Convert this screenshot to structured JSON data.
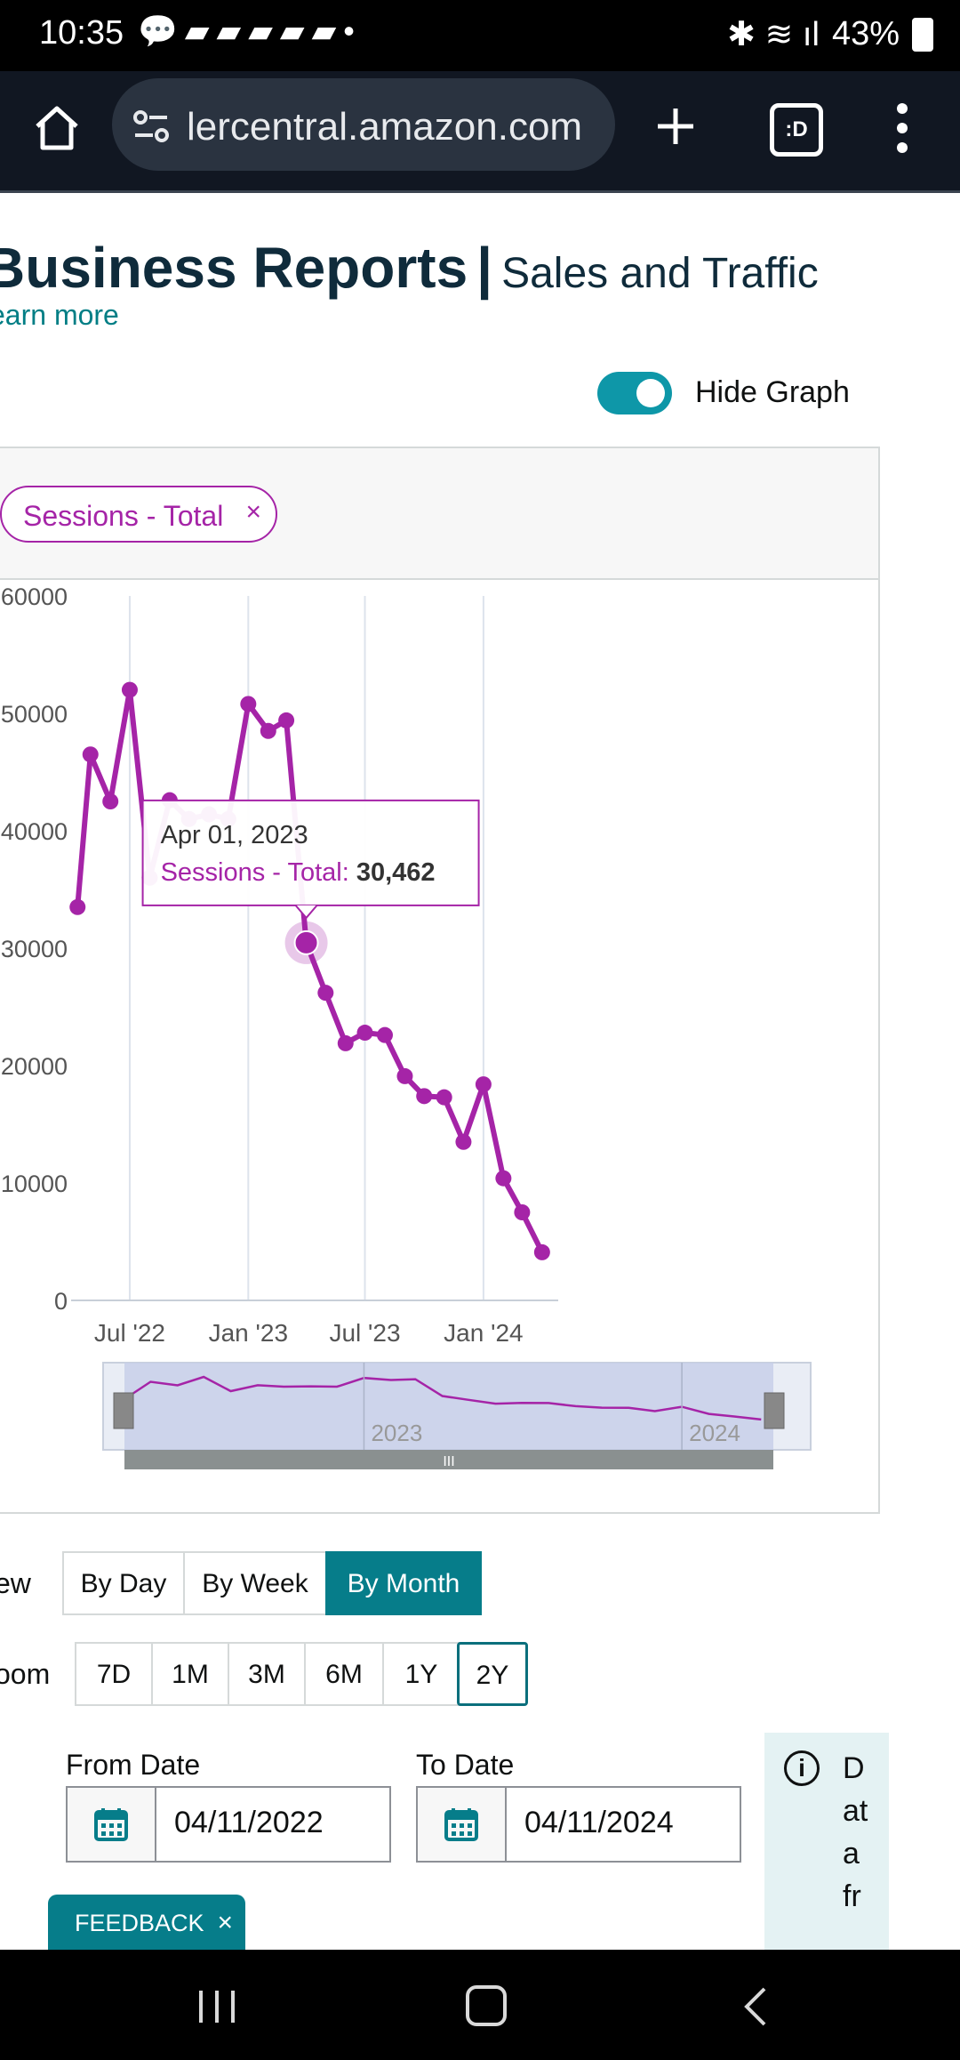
{
  "status_bar": {
    "time": "10:35",
    "battery": "43%",
    "notification_icons": [
      "chat-icon",
      "app-icon",
      "app-icon",
      "app-icon",
      "app-icon",
      "app-icon"
    ]
  },
  "browser": {
    "url": "lercentral.amazon.com",
    "tabs_label": ":D"
  },
  "header": {
    "title": "Business Reports",
    "separator": "|",
    "subtitle": "Sales and Traffic",
    "learn_more": "earn more"
  },
  "graph_toggle": {
    "label": "Hide Graph",
    "on": true,
    "color": "#0e97a8"
  },
  "metric_chip": {
    "label": "Sessions - Total",
    "close": "×",
    "color": "#a524a7"
  },
  "chart_data": {
    "type": "line",
    "series": [
      {
        "name": "Sessions - Total",
        "color": "#a524a7",
        "x": [
          "2022-04-11",
          "2022-05-01",
          "2022-06-01",
          "2022-07-01",
          "2022-08-01",
          "2022-09-01",
          "2022-10-01",
          "2022-11-01",
          "2022-12-01",
          "2023-01-01",
          "2023-02-01",
          "2023-03-01",
          "2023-04-01",
          "2023-05-01",
          "2023-06-01",
          "2023-07-01",
          "2023-08-01",
          "2023-09-01",
          "2023-10-01",
          "2023-11-01",
          "2023-12-01",
          "2024-01-01",
          "2024-02-01",
          "2024-03-01",
          "2024-04-01"
        ],
        "values": [
          33500,
          46500,
          42500,
          52000,
          36000,
          42600,
          41000,
          41400,
          41000,
          50800,
          48500,
          49400,
          30462,
          26200,
          21900,
          22800,
          22600,
          19100,
          17400,
          17300,
          13500,
          18400,
          10400,
          7500,
          4100
        ]
      }
    ],
    "ylim": [
      0,
      60000
    ],
    "yticks": [
      "60000",
      "50000",
      "40000",
      "30000",
      "20000",
      "10000",
      "0"
    ],
    "xticks": [
      "Jul '22",
      "Jan '23",
      "Jul '23",
      "Jan '24"
    ],
    "grid": "vertical",
    "tooltip": {
      "date": "Apr 01, 2023",
      "label": "Sessions - Total:",
      "value": "30,462"
    },
    "navigator_labels": [
      "2023",
      "2024"
    ]
  },
  "view": {
    "label": "ew",
    "options": [
      "By Day",
      "By Week",
      "By Month"
    ],
    "active": "By Month",
    "active_color": "#067d8a"
  },
  "zoom": {
    "label": "oom",
    "options": [
      "7D",
      "1M",
      "3M",
      "6M",
      "1Y",
      "2Y"
    ],
    "active": "2Y"
  },
  "dates": {
    "from_label": "From Date",
    "from_value": "04/11/2022",
    "to_label": "To Date",
    "to_value": "04/11/2024"
  },
  "info": {
    "text": "Data fr"
  },
  "feedback": {
    "label": "FEEDBACK",
    "close": "×"
  }
}
